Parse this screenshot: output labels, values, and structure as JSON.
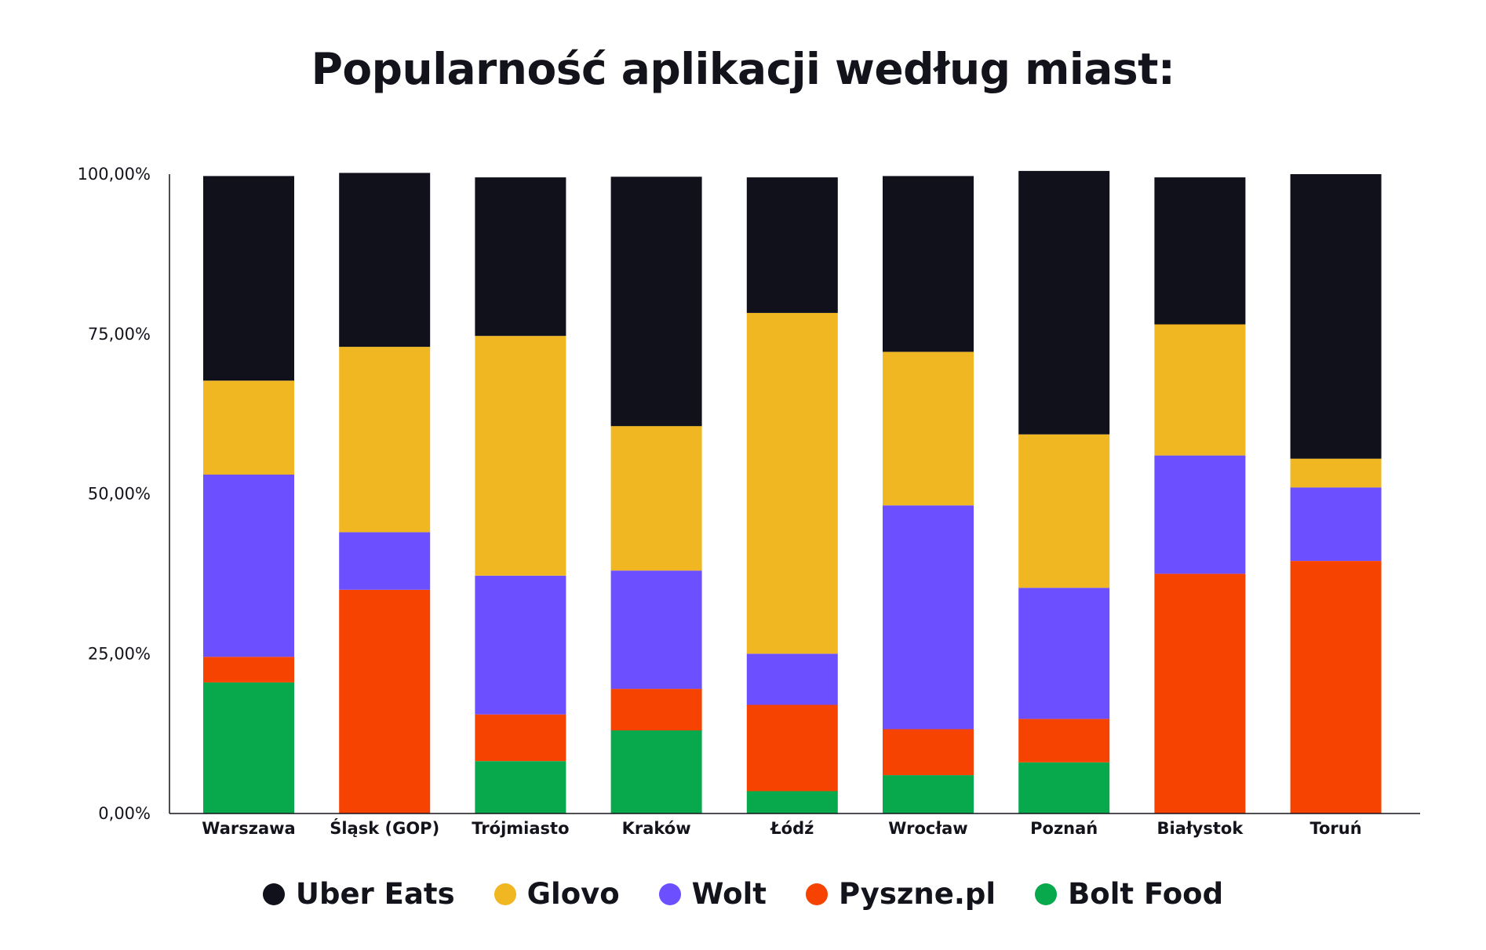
{
  "chart_data": {
    "type": "bar",
    "stacked": true,
    "title": "Popularność aplikacji według miast:",
    "xlabel": "",
    "ylabel": "",
    "ylim": [
      0,
      100
    ],
    "y_ticks": [
      "0,00%",
      "25,00%",
      "50,00%",
      "75,00%",
      "100,00%"
    ],
    "y_tick_values": [
      0,
      25,
      50,
      75,
      100
    ],
    "legend_position": "bottom",
    "grid": false,
    "categories": [
      "Warszawa",
      "Śląsk (GOP)",
      "Trójmiasto",
      "Kraków",
      "Łódź",
      "Wrocław",
      "Poznań",
      "Białystok",
      "Toruń"
    ],
    "series": [
      {
        "name": "Bolt Food",
        "color": "#08a84c",
        "values": [
          20.5,
          0,
          8.2,
          13,
          3.5,
          6,
          8,
          0,
          0
        ]
      },
      {
        "name": "Pyszne.pl",
        "color": "#f74301",
        "values": [
          4,
          35,
          7.3,
          6.5,
          13.5,
          7.2,
          6.8,
          37.5,
          39.5
        ]
      },
      {
        "name": "Wolt",
        "color": "#6c4fff",
        "values": [
          28.5,
          9,
          21.7,
          18.5,
          8,
          35,
          20.5,
          18.5,
          11.5
        ]
      },
      {
        "name": "Glovo",
        "color": "#f0b722",
        "values": [
          14.7,
          29,
          37.5,
          22.6,
          53.3,
          24,
          24,
          20.5,
          4.5
        ]
      },
      {
        "name": "Uber Eats",
        "color": "#10111b",
        "values": [
          32,
          27.2,
          24.8,
          39,
          21.2,
          27.5,
          41.2,
          23,
          44.5
        ]
      }
    ]
  },
  "legend": {
    "items": [
      {
        "label": "Uber Eats",
        "color": "#10111b"
      },
      {
        "label": "Glovo",
        "color": "#f0b722"
      },
      {
        "label": "Wolt",
        "color": "#6c4fff"
      },
      {
        "label": "Pyszne.pl",
        "color": "#f74301"
      },
      {
        "label": "Bolt Food",
        "color": "#08a84c"
      }
    ]
  }
}
